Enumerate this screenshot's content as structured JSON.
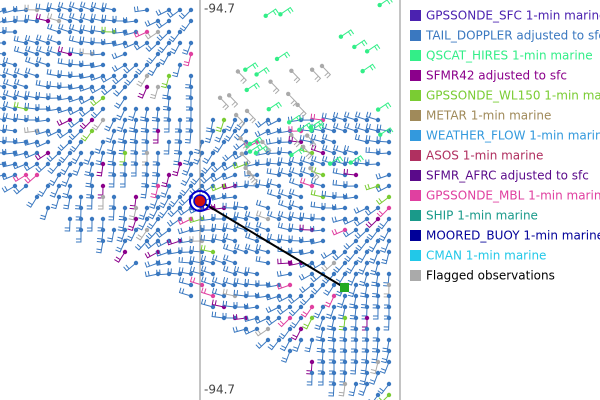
{
  "map": {
    "top_label": "-94.7",
    "bottom_label": "-94.7"
  },
  "legend": [
    {
      "label": "GPSSONDE_SFC 1-min marine",
      "color": "#4b22b0"
    },
    {
      "label": "TAIL_DOPPLER adjusted to sfc",
      "color": "#3a78c0"
    },
    {
      "label": "QSCAT_HIRES 1-min marine",
      "color": "#33ee88"
    },
    {
      "label": "SFMR42 adjusted to sfc",
      "color": "#8b008b"
    },
    {
      "label": "GPSSONDE_WL150 1-min marine",
      "color": "#7acc33"
    },
    {
      "label": "METAR 1-min marine",
      "color": "#a08a5a"
    },
    {
      "label": "WEATHER_FLOW 1-min marine",
      "color": "#3399dd"
    },
    {
      "label": "ASOS 1-min marine",
      "color": "#b03060"
    },
    {
      "label": "SFMR_AFRC adjusted to sfc",
      "color": "#5a0a8a"
    },
    {
      "label": "GPSSONDE_MBL 1-min marine",
      "color": "#e040a0"
    },
    {
      "label": "SHIP 1-min marine",
      "color": "#1a9a8a"
    },
    {
      "label": "MOORED_BUOY 1-min marine",
      "color": "#000099"
    },
    {
      "label": "CMAN 1-min marine",
      "color": "#22c8e8"
    },
    {
      "label": "Flagged observations",
      "color": "#aaaaaa"
    }
  ]
}
